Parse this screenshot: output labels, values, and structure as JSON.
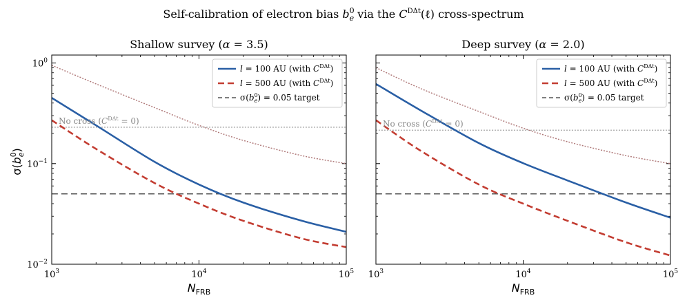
{
  "figure": {
    "suptitle_pre": "Self-calibration of electron bias ",
    "suptitle_sym": "b",
    "suptitle_sup": "0",
    "suptitle_sub": "e",
    "suptitle_mid": " via the ",
    "suptitle_c": "C",
    "suptitle_csup": "DΔt",
    "suptitle_ell": "(ℓ)",
    "suptitle_post": " cross-spectrum"
  },
  "chart_data": [
    {
      "type": "line",
      "title": "Shallow survey  (α = 3.5)",
      "xlabel": "N_FRB",
      "ylabel": "σ(b_e^0)",
      "xscale": "log",
      "yscale": "log",
      "xlim": [
        1000,
        100000
      ],
      "ylim": [
        0.01,
        1.2
      ],
      "x": [
        1000,
        2000,
        5000,
        10000,
        20000,
        50000,
        100000
      ],
      "series": [
        {
          "name": "l = 100 AU (with C^DΔt)",
          "color": "#2a5fa5",
          "style": "solid",
          "values": [
            0.45,
            0.24,
            0.104,
            0.062,
            0.041,
            0.027,
            0.021
          ]
        },
        {
          "name": "l = 500 AU (with C^DΔt)",
          "color": "#c33d32",
          "style": "dashed",
          "values": [
            0.27,
            0.14,
            0.064,
            0.04,
            0.027,
            0.018,
            0.0148
          ]
        },
        {
          "name": "No cross (C^DΔt = 0), l = 100 AU",
          "color": "#b07a7a",
          "style": "dotted",
          "values": [
            0.95,
            0.62,
            0.36,
            0.24,
            0.17,
            0.12,
            0.1
          ]
        },
        {
          "name": "No cross (C^DΔt = 0), l = 500 AU",
          "color": "#999999",
          "style": "dotted",
          "values": [
            0.23,
            0.23,
            0.23,
            0.23,
            0.23,
            0.23,
            0.23
          ]
        },
        {
          "name": "σ(b_e^0) = 0.05 target",
          "color": "#555555",
          "style": "dashed",
          "values": [
            0.05,
            0.05,
            0.05,
            0.05,
            0.05,
            0.05,
            0.05
          ]
        }
      ]
    },
    {
      "type": "line",
      "title": "Deep survey  (α = 2.0)",
      "xlabel": "N_FRB",
      "ylabel": "",
      "xscale": "log",
      "yscale": "log",
      "xlim": [
        1000,
        100000
      ],
      "ylim": [
        0.01,
        1.2
      ],
      "x": [
        1000,
        2000,
        5000,
        10000,
        20000,
        50000,
        100000
      ],
      "series": [
        {
          "name": "l = 100 AU (with C^DΔt)",
          "color": "#2a5fa5",
          "style": "solid",
          "values": [
            0.62,
            0.34,
            0.16,
            0.101,
            0.068,
            0.041,
            0.029
          ]
        },
        {
          "name": "l = 500 AU (with C^DΔt)",
          "color": "#c33d32",
          "style": "dashed",
          "values": [
            0.27,
            0.135,
            0.062,
            0.04,
            0.027,
            0.0165,
            0.0122
          ]
        },
        {
          "name": "No cross (C^DΔt = 0), l = 100 AU",
          "color": "#b07a7a",
          "style": "dotted",
          "values": [
            0.9,
            0.56,
            0.33,
            0.225,
            0.165,
            0.12,
            0.1
          ]
        },
        {
          "name": "No cross (C^DΔt = 0), l = 500 AU",
          "color": "#999999",
          "style": "dotted",
          "values": [
            0.215,
            0.215,
            0.215,
            0.215,
            0.215,
            0.215,
            0.215
          ]
        },
        {
          "name": "σ(b_e^0) = 0.05 target",
          "color": "#555555",
          "style": "dashed",
          "values": [
            0.05,
            0.05,
            0.05,
            0.05,
            0.05,
            0.05,
            0.05
          ]
        }
      ]
    }
  ],
  "panels": [
    {
      "title_pre": "Shallow survey  (",
      "title_alpha": "α",
      "title_post": " = 3.5)"
    },
    {
      "title_pre": "Deep survey  (",
      "title_alpha": "α",
      "title_post": " = 2.0)"
    }
  ],
  "axis": {
    "x_label_main": "N",
    "x_label_sub": "FRB",
    "x_tick_base": "10",
    "x_tick_exps": [
      "3",
      "4",
      "5"
    ],
    "y_tick_base": "10",
    "y_tick_exps": [
      "0",
      "−1",
      "−2"
    ],
    "y_label_pre": "σ(",
    "y_label_b": "b",
    "y_label_sup": "0",
    "y_label_sub": "e",
    "y_label_post": ")"
  },
  "legend": {
    "l_sym": "l",
    "l100": " = 100 AU (with ",
    "l500": " = 500 AU (with ",
    "c": "C",
    "csup": "DΔt",
    "close": ")",
    "target_pre": "σ(",
    "target_b": "b",
    "target_sup": "0",
    "target_sub": "e",
    "target_post": ") = 0.05 target"
  },
  "annotation": {
    "pre": "No cross (",
    "c": "C",
    "csup": "DΔt",
    "post": " = 0)"
  }
}
